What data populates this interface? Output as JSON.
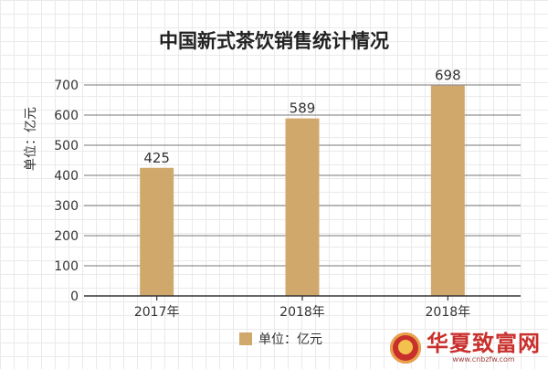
{
  "chart_data": {
    "type": "bar",
    "title": "中国新式茶饮销售统计情况",
    "ylabel": "单位：亿元",
    "xlabel": "",
    "categories": [
      "2017年",
      "2018年",
      "2018年"
    ],
    "series": [
      {
        "name": "单位：亿元",
        "values": [
          425,
          589,
          698
        ],
        "data_labels": [
          "425",
          "589",
          "698"
        ],
        "color": "#d1a86c"
      }
    ],
    "ylim": [
      0,
      700
    ],
    "yticks": [
      0,
      100,
      200,
      300,
      400,
      500,
      600,
      700
    ],
    "grid": true,
    "legend_position": "bottom"
  },
  "watermark": {
    "text": "华夏致富网",
    "subtext": "www.cnbzfw.com"
  }
}
